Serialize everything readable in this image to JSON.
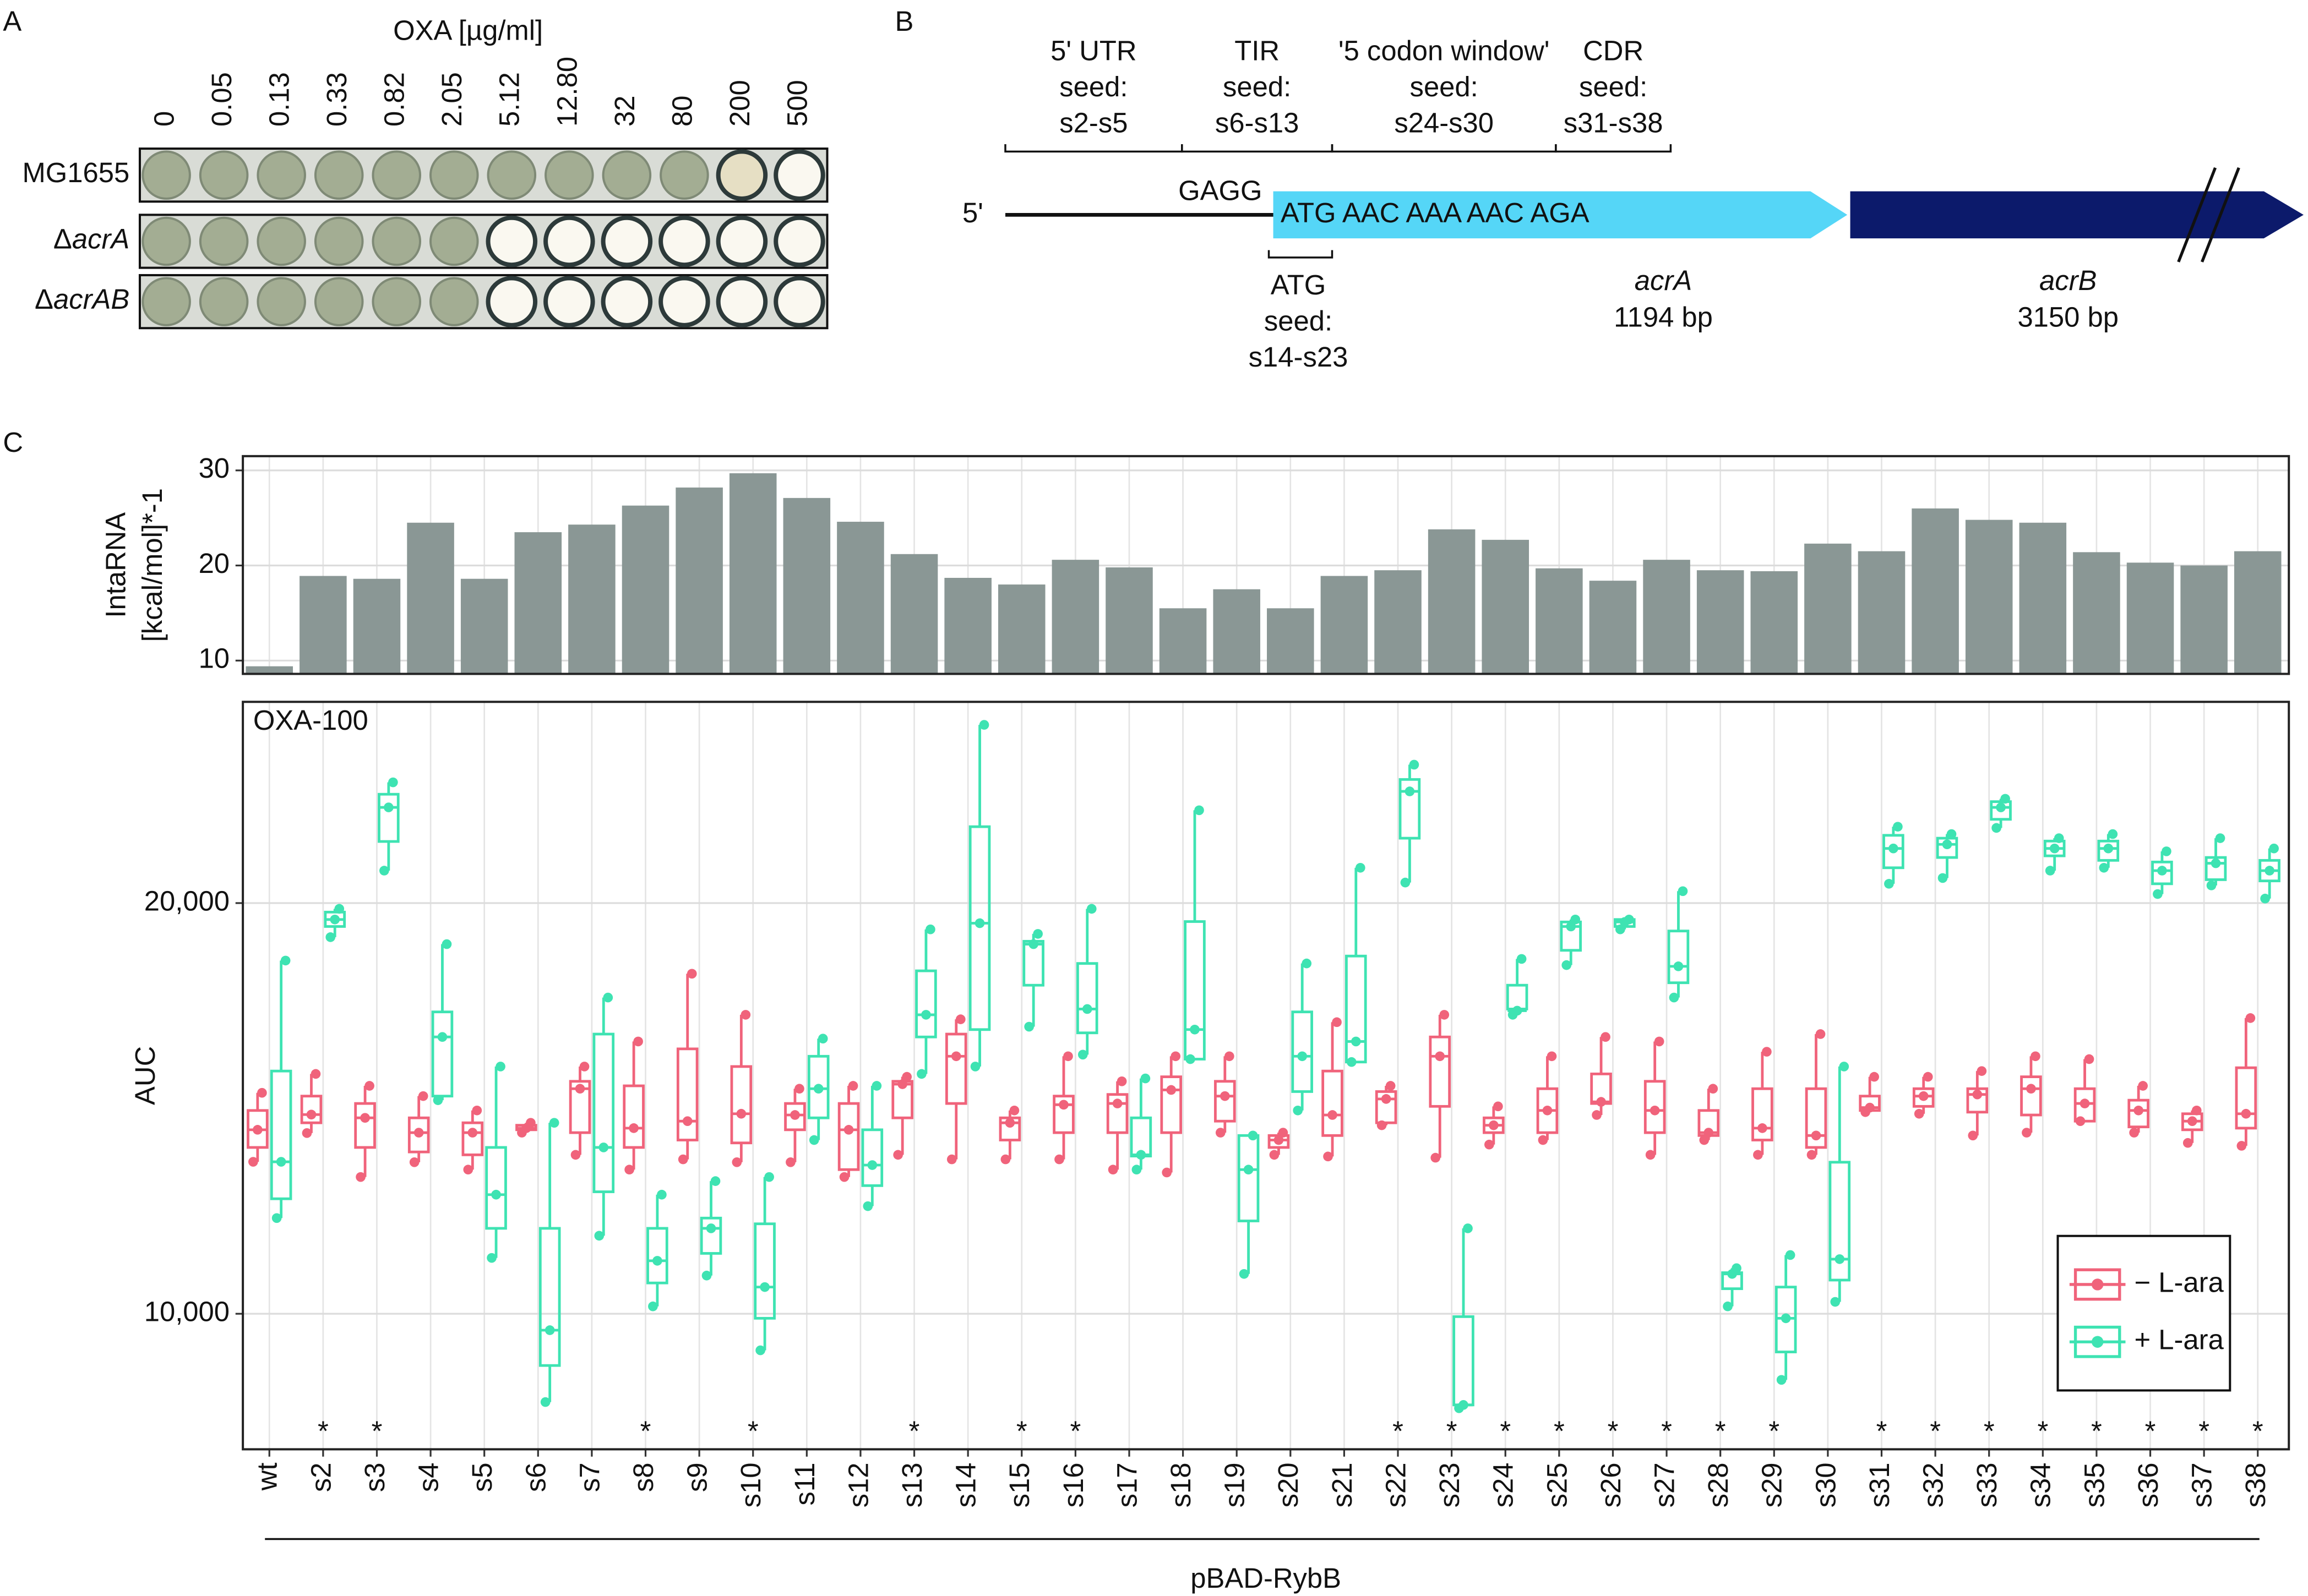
{
  "panel_a": {
    "label": "A",
    "title": "OXA [µg/ml]",
    "concentrations": [
      "0",
      "0.05",
      "0.13",
      "0.33",
      "0.82",
      "2.05",
      "5.12",
      "12.80",
      "32",
      "80",
      "200",
      "500"
    ],
    "strains": [
      [
        "MG1655"
      ],
      [
        "Δ",
        "acrA"
      ],
      [
        "Δ",
        "acrAB"
      ]
    ]
  },
  "panel_b": {
    "label": "B",
    "regions": [
      {
        "lines": [
          "5' UTR",
          "seed:",
          "s2-s5"
        ]
      },
      {
        "lines": [
          "TIR",
          "seed:",
          "s6-s13"
        ]
      },
      {
        "lines": [
          "'5 codon window'",
          "seed:",
          "s24-s30"
        ]
      },
      {
        "lines": [
          "CDR",
          "seed:",
          "s31-s38"
        ]
      }
    ],
    "five_prime": "5'",
    "sd": "GAGG",
    "codons": "ATG AAC AAA AAC AGA",
    "atg_region": {
      "lines": [
        "ATG",
        "seed:",
        "s14-s23"
      ]
    },
    "genes": [
      {
        "name": "acrA",
        "length": "1194 bp"
      },
      {
        "name": "acrB",
        "length": "3150 bp"
      }
    ]
  },
  "chart_data": [
    {
      "type": "bar",
      "panel_label": "C",
      "ylabel": [
        "IntaRNA",
        "[kcal/mol]*-1"
      ],
      "color": "#8a9795",
      "values": [
        9.4,
        18.9,
        18.6,
        24.5,
        18.6,
        23.5,
        24.3,
        26.3,
        28.2,
        29.7,
        27.1,
        24.6,
        21.2,
        18.7,
        18.0,
        20.6,
        19.8,
        15.5,
        17.5,
        15.5,
        18.9,
        19.5,
        23.8,
        22.7,
        19.7,
        18.4,
        20.6,
        19.5,
        19.4,
        22.3,
        21.5,
        26.0,
        24.8,
        24.5,
        21.4,
        20.3,
        20.0,
        21.5
      ],
      "ylim": [
        8.6,
        31.5
      ],
      "yticks": [
        10,
        20,
        30
      ],
      "grid": true
    },
    {
      "type": "box",
      "annotation": "OXA-100",
      "ylabel": "AUC",
      "xlabel": "pBAD-RybB",
      "legend": "lower right",
      "grid": true,
      "categories": [
        "wt",
        "s2",
        "s3",
        "s4",
        "s5",
        "s6",
        "s7",
        "s8",
        "s9",
        "s10",
        "s11",
        "s12",
        "s13",
        "s14",
        "s15",
        "s16",
        "s17",
        "s18",
        "s19",
        "s20",
        "s21",
        "s22",
        "s23",
        "s24",
        "s25",
        "s26",
        "s27",
        "s28",
        "s29",
        "s30",
        "s31",
        "s32",
        "s33",
        "s34",
        "s35",
        "s36",
        "s37",
        "s38"
      ],
      "significance": [
        null,
        "*",
        "*",
        null,
        null,
        null,
        null,
        "*",
        null,
        "*",
        null,
        null,
        "*",
        null,
        "*",
        "*",
        null,
        null,
        null,
        null,
        null,
        "*",
        "*",
        "*",
        "*",
        "*",
        "*",
        "*",
        "*",
        null,
        "*",
        "*",
        "*",
        "*",
        "*",
        "*",
        "*",
        "*"
      ],
      "ylim": [
        6700,
        24900
      ],
      "yticks": [
        {
          "value": 10000,
          "label": "10,000"
        },
        {
          "value": 20000,
          "label": "20,000"
        }
      ],
      "series": [
        {
          "name": "− L-ara",
          "color": "#f0637b",
          "values": [
            [
              13700,
              14050,
              14480,
              14950,
              15380
            ],
            [
              14400,
              14650,
              14850,
              15300,
              15840
            ],
            [
              13330,
              14050,
              14770,
              15120,
              15550
            ],
            [
              13690,
              13940,
              14410,
              14770,
              15300
            ],
            [
              13510,
              13870,
              14410,
              14650,
              14950
            ],
            [
              14410,
              14480,
              14520,
              14590,
              14650
            ],
            [
              13870,
              14410,
              15480,
              15660,
              16020
            ],
            [
              13510,
              14050,
              14520,
              15550,
              16630
            ],
            [
              13760,
              14230,
              14690,
              16450,
              18280
            ],
            [
              13690,
              14160,
              14870,
              16020,
              17280
            ],
            [
              13690,
              14480,
              14840,
              15120,
              15480
            ],
            [
              13330,
              13510,
              14480,
              15120,
              15550
            ],
            [
              13870,
              14770,
              15590,
              15660,
              15770
            ],
            [
              13760,
              15120,
              16270,
              16810,
              17170
            ],
            [
              13760,
              14230,
              14650,
              14770,
              14950
            ],
            [
              13760,
              14410,
              15090,
              15300,
              16270
            ],
            [
              13510,
              14410,
              15120,
              15340,
              15660
            ],
            [
              13440,
              14410,
              15450,
              15770,
              16270
            ],
            [
              14410,
              14690,
              15300,
              15660,
              16270
            ],
            [
              13870,
              14050,
              14230,
              14340,
              14410
            ],
            [
              13830,
              14340,
              14840,
              15910,
              17100
            ],
            [
              14590,
              14650,
              15230,
              15410,
              15550
            ],
            [
              13800,
              15050,
              16270,
              16740,
              17280
            ],
            [
              14120,
              14410,
              14590,
              14770,
              15050
            ],
            [
              14230,
              14410,
              14950,
              15480,
              16270
            ],
            [
              14840,
              15120,
              15160,
              15840,
              16740
            ],
            [
              13870,
              14410,
              14950,
              15660,
              16630
            ],
            [
              14230,
              14340,
              14410,
              14950,
              15480
            ],
            [
              13870,
              14230,
              14520,
              15480,
              16380
            ],
            [
              13870,
              14050,
              14340,
              15480,
              16810
            ],
            [
              14910,
              14950,
              15020,
              15300,
              15770
            ],
            [
              14870,
              15050,
              15300,
              15480,
              15770
            ],
            [
              14340,
              14910,
              15340,
              15480,
              15910
            ],
            [
              14410,
              14840,
              15480,
              15770,
              16270
            ],
            [
              14690,
              14690,
              15120,
              15480,
              16200
            ],
            [
              14410,
              14550,
              14950,
              15200,
              15550
            ],
            [
              14160,
              14480,
              14690,
              14870,
              14950
            ],
            [
              14090,
              14520,
              14870,
              15990,
              17200
            ]
          ]
        },
        {
          "name": "+ L-ara",
          "color": "#3ee3b2",
          "values": [
            [
              12330,
              12800,
              13700,
              15910,
              18600
            ],
            [
              19170,
              19430,
              19600,
              19780,
              19860
            ],
            [
              20790,
              21500,
              22330,
              22650,
              22940
            ],
            [
              15200,
              15300,
              16740,
              17350,
              19000
            ],
            [
              11360,
              12080,
              12900,
              14050,
              16020
            ],
            [
              7850,
              8740,
              9600,
              12080,
              14650
            ],
            [
              11900,
              12970,
              14050,
              16810,
              17700
            ],
            [
              10180,
              10750,
              11290,
              12080,
              12900
            ],
            [
              10930,
              11470,
              12080,
              12330,
              13230
            ],
            [
              9110,
              9890,
              10650,
              12190,
              13330
            ],
            [
              14230,
              14770,
              15480,
              16270,
              16700
            ],
            [
              12620,
              13120,
              13620,
              14480,
              15550
            ],
            [
              15840,
              16740,
              17280,
              18350,
              19360
            ],
            [
              16020,
              16920,
              19510,
              21860,
              24340
            ],
            [
              16990,
              18000,
              19000,
              19070,
              19250
            ],
            [
              16310,
              16840,
              17420,
              18530,
              19860
            ],
            [
              13510,
              13840,
              13870,
              14770,
              15730
            ],
            [
              16200,
              16200,
              16920,
              19550,
              22260
            ],
            [
              10970,
              12260,
              13510,
              14340,
              14340
            ],
            [
              14950,
              15410,
              16270,
              17350,
              18530
            ],
            [
              16130,
              16130,
              16630,
              18710,
              20860
            ],
            [
              20500,
              21580,
              22720,
              23010,
              23370
            ],
            [
              7700,
              7780,
              7780,
              9930,
              12080
            ],
            [
              17280,
              17420,
              17380,
              18000,
              18640
            ],
            [
              18490,
              18850,
              19430,
              19540,
              19600
            ],
            [
              19360,
              19430,
              19540,
              19600,
              19600
            ],
            [
              17700,
              18060,
              18460,
              19320,
              20290
            ],
            [
              10180,
              10610,
              10970,
              11000,
              11110
            ],
            [
              8390,
              9070,
              9890,
              10650,
              11430
            ],
            [
              10290,
              10820,
              11330,
              13690,
              16020
            ],
            [
              20470,
              20860,
              21330,
              21650,
              21860
            ],
            [
              20610,
              21110,
              21430,
              21580,
              21680
            ],
            [
              21830,
              22040,
              22330,
              22470,
              22540
            ],
            [
              20790,
              21150,
              21330,
              21510,
              21580
            ],
            [
              20860,
              21040,
              21330,
              21510,
              21680
            ],
            [
              20220,
              20470,
              20790,
              21000,
              21260
            ],
            [
              20430,
              20570,
              20970,
              21110,
              21580
            ],
            [
              20110,
              20540,
              20790,
              21040,
              21330
            ]
          ]
        }
      ]
    }
  ]
}
